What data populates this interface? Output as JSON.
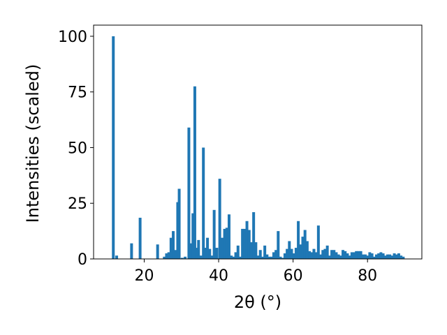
{
  "chart_data": {
    "type": "bar",
    "title": "",
    "xlabel": "2θ (°)",
    "ylabel": "Intensities (scaled)",
    "xlim": [
      6.4,
      94.6
    ],
    "ylim": [
      0,
      105
    ],
    "x_ticks": [
      20,
      40,
      60,
      80
    ],
    "y_ticks": [
      0,
      25,
      50,
      75,
      100
    ],
    "grid": false,
    "legend": "none",
    "bar_width": 0.75,
    "colors": {
      "bar": "#1f77b4",
      "axis": "#000000",
      "background": "#ffffff"
    },
    "series": [
      {
        "x": [
          11.7,
          12.6,
          16.6,
          18.9,
          23.6,
          25.4,
          26.0,
          26.6,
          27.2,
          27.8,
          28.5,
          29.0,
          29.4,
          30.2,
          31.0,
          32.0,
          32.6,
          33.1,
          33.6,
          34.0,
          34.6,
          35.2,
          35.9,
          36.4,
          37.0,
          37.6,
          38.2,
          38.8,
          39.5,
          40.3,
          41.0,
          41.6,
          42.2,
          42.8,
          43.4,
          44.0,
          44.6,
          45.2,
          45.8,
          46.4,
          47.0,
          47.6,
          48.2,
          48.8,
          49.4,
          50.0,
          50.6,
          51.2,
          51.8,
          52.4,
          53.0,
          53.6,
          54.2,
          54.8,
          55.4,
          56.0,
          56.6,
          57.2,
          57.8,
          58.4,
          59.0,
          59.6,
          60.2,
          60.8,
          61.4,
          62.0,
          62.6,
          63.2,
          63.8,
          64.4,
          65.0,
          65.6,
          66.2,
          66.8,
          67.4,
          68.0,
          68.6,
          69.2,
          69.8,
          70.4,
          71.0,
          71.6,
          72.2,
          72.8,
          73.4,
          74.0,
          74.6,
          75.2,
          75.8,
          76.4,
          77.0,
          77.6,
          78.2,
          78.8,
          79.4,
          80.0,
          80.6,
          81.2,
          81.8,
          82.4,
          83.0,
          83.6,
          84.2,
          84.8,
          85.4,
          86.0,
          86.6,
          87.2,
          87.8,
          88.4,
          89.0,
          89.6
        ],
        "values": [
          100.0,
          1.5,
          7.0,
          18.5,
          6.5,
          1.0,
          2.5,
          3.0,
          9.5,
          12.5,
          4.0,
          25.5,
          31.5,
          0.5,
          1.0,
          59.0,
          7.0,
          20.5,
          77.5,
          5.0,
          8.5,
          1.5,
          50.0,
          5.0,
          9.5,
          4.5,
          1.5,
          22.0,
          5.0,
          36.0,
          9.5,
          13.5,
          14.0,
          20.0,
          1.5,
          1.0,
          3.0,
          6.0,
          1.0,
          13.5,
          13.5,
          17.0,
          13.0,
          7.5,
          21.0,
          7.5,
          1.5,
          4.0,
          1.0,
          6.0,
          2.0,
          1.0,
          1.0,
          3.0,
          4.0,
          12.5,
          1.0,
          0.5,
          2.5,
          4.5,
          8.0,
          4.5,
          2.5,
          5.0,
          17.0,
          6.5,
          10.0,
          13.0,
          8.0,
          3.5,
          3.0,
          4.5,
          3.0,
          15.0,
          2.0,
          4.0,
          4.5,
          6.0,
          1.5,
          4.0,
          4.0,
          3.0,
          2.0,
          1.5,
          4.0,
          3.5,
          2.5,
          1.5,
          3.0,
          3.0,
          3.5,
          3.5,
          3.5,
          2.0,
          2.0,
          1.5,
          3.0,
          2.5,
          1.0,
          2.0,
          2.5,
          3.0,
          2.5,
          1.5,
          2.0,
          2.0,
          1.5,
          2.5,
          2.0,
          2.5,
          1.5,
          1.0
        ]
      }
    ]
  }
}
